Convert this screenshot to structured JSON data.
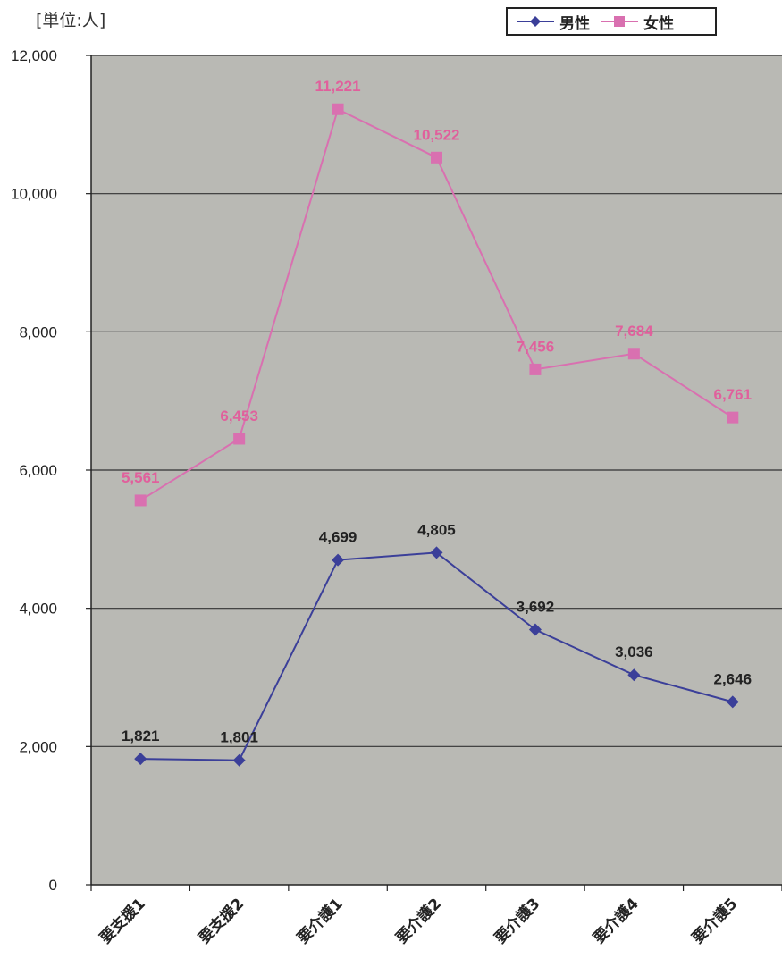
{
  "chart_data": {
    "type": "line",
    "unit_label": "[単位:人]",
    "categories": [
      "要支援1",
      "要支援2",
      "要介護1",
      "要介護2",
      "要介護3",
      "要介護4",
      "要介護5"
    ],
    "series": [
      {
        "name": "男性",
        "color": "#3b3f99",
        "marker": "diamond",
        "values": [
          1821,
          1801,
          4699,
          4805,
          3692,
          3036,
          2646
        ],
        "labels": [
          "1,821",
          "1,801",
          "4,699",
          "4,805",
          "3,692",
          "3,036",
          "2,646"
        ]
      },
      {
        "name": "女性",
        "color": "#d970b0",
        "marker": "square",
        "values": [
          5561,
          6453,
          11221,
          10522,
          7456,
          7684,
          6761
        ],
        "labels": [
          "5,561",
          "6,453",
          "11,221",
          "10,522",
          "7,456",
          "7,684",
          "6,761"
        ]
      }
    ],
    "ylim": [
      0,
      12000
    ],
    "yticks": [
      0,
      2000,
      4000,
      6000,
      8000,
      10000,
      12000
    ],
    "ytick_labels": [
      "0",
      "2,000",
      "4,000",
      "6,000",
      "8,000",
      "10,000",
      "12,000"
    ],
    "grid": true,
    "legend_position": "top-right",
    "plot_background": "#b9b9b4"
  }
}
